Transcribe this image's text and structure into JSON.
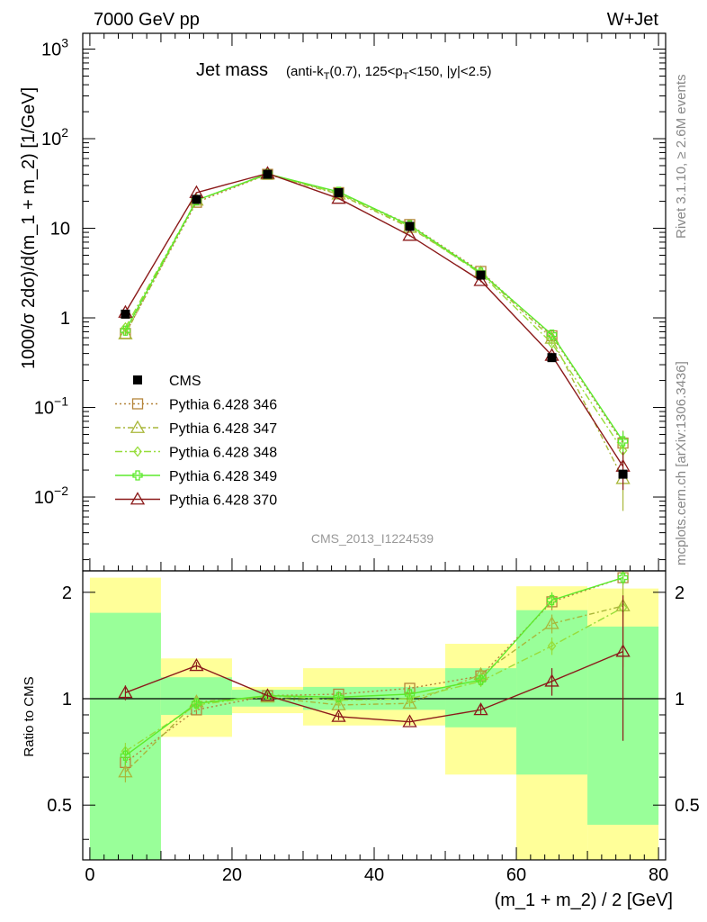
{
  "header": {
    "left": "7000 GeV pp",
    "right": "W+Jet"
  },
  "side_labels": {
    "rivet": "Rivet 3.1.10, ≥ 2.6M events",
    "mcplots": "mcplots.cern.ch [arXiv:1306.3436]"
  },
  "chart_data": [
    {
      "type": "line",
      "panel": "main",
      "title": "Jet mass",
      "title_cuts": "(anti-k_T(0.7), 125<p_T<150, |y|<2.5)",
      "ylabel": "1000/σ 2dσ)/d(m_1 + m_2) [1/GeV]",
      "yscale": "log",
      "ylim": [
        0.0015,
        1500
      ],
      "xlim": [
        -1,
        81
      ],
      "yticks": [
        {
          "value": 1000,
          "base": "10",
          "exp": "3"
        },
        {
          "value": 100,
          "base": "10",
          "exp": "2"
        },
        {
          "value": 10,
          "base": "10",
          "exp": ""
        },
        {
          "value": 1,
          "base": "1",
          "exp": ""
        },
        {
          "value": 0.1,
          "base": "10",
          "exp": "−1"
        },
        {
          "value": 0.01,
          "base": "10",
          "exp": "−2"
        }
      ],
      "watermark": "CMS_2013_I1224539",
      "legend_position": "lower-left",
      "x": [
        5,
        15,
        25,
        35,
        45,
        55,
        65,
        75
      ],
      "data": {
        "name": "CMS",
        "values": [
          1.1,
          21,
          40,
          25,
          10.5,
          3.0,
          0.36,
          0.018
        ],
        "errors": [
          0.05,
          0.5,
          0.6,
          0.5,
          0.3,
          0.1,
          0.02,
          0.002
        ]
      },
      "series": [
        {
          "name": "Pythia 6.428 346",
          "color": "#b5853b",
          "marker": "square",
          "dash": "2,3",
          "values": [
            0.67,
            19.5,
            40,
            25,
            11,
            3.3,
            0.63,
            0.04
          ],
          "errors": [
            0.03,
            0.3,
            0.4,
            0.4,
            0.2,
            0.1,
            0.03,
            0.015
          ]
        },
        {
          "name": "Pythia 6.428 347",
          "color": "#a9b73a",
          "marker": "triangle",
          "dash": "6,3,2,3",
          "values": [
            0.66,
            20.5,
            40,
            24,
            10.2,
            3.2,
            0.59,
            0.016
          ],
          "errors": [
            0.03,
            0.3,
            0.4,
            0.4,
            0.2,
            0.1,
            0.03,
            0.009
          ]
        },
        {
          "name": "Pythia 6.428 348",
          "color": "#97dd3a",
          "marker": "diamond",
          "dash": "8,3,2,3",
          "values": [
            0.78,
            20.5,
            40.5,
            24.5,
            10.5,
            3.1,
            0.52,
            0.033
          ],
          "errors": [
            0.03,
            0.3,
            0.4,
            0.4,
            0.2,
            0.1,
            0.03,
            0.01
          ]
        },
        {
          "name": "Pythia 6.428 349",
          "color": "#5dea2d",
          "marker": "plus",
          "dash": "",
          "values": [
            0.72,
            20.5,
            40.5,
            25.5,
            10.8,
            3.2,
            0.65,
            0.042
          ],
          "errors": [
            0.03,
            0.3,
            0.4,
            0.4,
            0.2,
            0.1,
            0.03,
            0.012
          ]
        },
        {
          "name": "Pythia 6.428 370",
          "color": "#8b1a1a",
          "marker": "triangle",
          "dash": "",
          "values": [
            1.15,
            25,
            41,
            21.5,
            8.3,
            2.6,
            0.38,
            0.022
          ],
          "errors": [
            0.04,
            0.3,
            0.4,
            0.4,
            0.2,
            0.1,
            0.03,
            0.01
          ]
        }
      ]
    },
    {
      "type": "line",
      "panel": "ratio",
      "ylabel": "Ratio to CMS",
      "xlabel": "(m_1 + m_2) / 2 [GeV]",
      "ylim": [
        0.35,
        2.3
      ],
      "xlim": [
        -1,
        81
      ],
      "yticks": [
        "0.5",
        "1",
        "2"
      ],
      "xticks": [
        "0",
        "20",
        "40",
        "60",
        "80"
      ],
      "x": [
        5,
        15,
        25,
        35,
        45,
        55,
        65,
        75
      ],
      "bands": [
        {
          "x0": 0,
          "x1": 10,
          "yellow": [
            0.35,
            2.2
          ],
          "green": [
            0.35,
            1.75
          ]
        },
        {
          "x0": 10,
          "x1": 20,
          "yellow": [
            0.78,
            1.3
          ],
          "green": [
            0.9,
            1.15
          ]
        },
        {
          "x0": 20,
          "x1": 30,
          "yellow": [
            0.91,
            1.08
          ],
          "green": [
            0.95,
            1.06
          ]
        },
        {
          "x0": 30,
          "x1": 40,
          "yellow": [
            0.84,
            1.22
          ],
          "green": [
            0.93,
            1.08
          ]
        },
        {
          "x0": 40,
          "x1": 50,
          "yellow": [
            0.84,
            1.22
          ],
          "green": [
            0.93,
            1.08
          ]
        },
        {
          "x0": 50,
          "x1": 60,
          "yellow": [
            0.61,
            1.43
          ],
          "green": [
            0.83,
            1.22
          ]
        },
        {
          "x0": 60,
          "x1": 70,
          "yellow": [
            0.35,
            2.08
          ],
          "green": [
            0.61,
            1.78
          ]
        },
        {
          "x0": 70,
          "x1": 80,
          "yellow": [
            0.35,
            2.05
          ],
          "green": [
            0.44,
            1.6
          ]
        }
      ],
      "series": [
        {
          "name": "Pythia 6.428 346",
          "values": [
            0.66,
            0.93,
            1.02,
            1.03,
            1.07,
            1.16,
            1.88,
            2.2
          ],
          "errors": [
            0.04,
            0.03,
            0.02,
            0.02,
            0.02,
            0.04,
            0.1,
            0.1
          ]
        },
        {
          "name": "Pythia 6.428 347",
          "values": [
            0.62,
            0.98,
            1.01,
            0.96,
            0.97,
            1.17,
            1.63,
            1.83
          ],
          "errors": [
            0.04,
            0.03,
            0.02,
            0.02,
            0.02,
            0.04,
            0.1,
            0.6
          ]
        },
        {
          "name": "Pythia 6.428 348",
          "values": [
            0.71,
            0.96,
            1.02,
            0.99,
            1.0,
            1.12,
            1.41,
            1.81
          ],
          "errors": [
            0.04,
            0.03,
            0.02,
            0.02,
            0.02,
            0.04,
            0.08,
            0.1
          ]
        },
        {
          "name": "Pythia 6.428 349",
          "values": [
            0.69,
            0.97,
            1.02,
            1.01,
            1.03,
            1.13,
            1.9,
            2.2
          ],
          "errors": [
            0.04,
            0.03,
            0.02,
            0.02,
            0.02,
            0.04,
            0.1,
            0.1
          ]
        },
        {
          "name": "Pythia 6.428 370",
          "values": [
            1.04,
            1.24,
            1.02,
            0.89,
            0.86,
            0.93,
            1.12,
            1.36
          ],
          "errors": [
            0.05,
            0.03,
            0.02,
            0.02,
            0.02,
            0.03,
            0.1,
            0.6
          ]
        }
      ]
    }
  ]
}
